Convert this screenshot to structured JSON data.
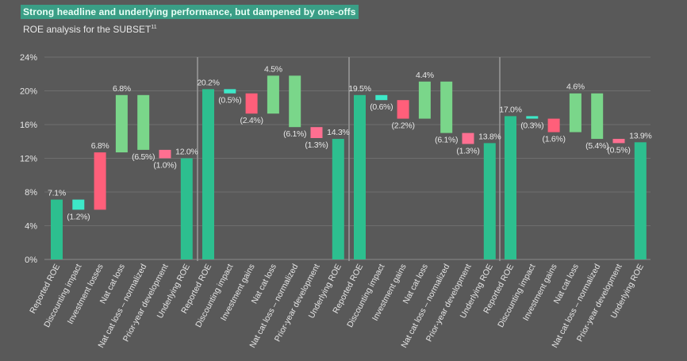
{
  "headline": "Strong headline and underlying performance, but dampened by one-offs",
  "subtitle": "ROE analysis for the SUBSET",
  "subtitle_sup": "11",
  "colors": {
    "background": "#595959",
    "total": "#2dbf8f",
    "discounting": "#3de8c8",
    "negative": "#ff5f7a",
    "positive": "#7ad68a",
    "prior_year": "#ff6f91",
    "text": "#e6e6e6",
    "grid": "#6e6e6e",
    "divider": "#9a9a9a"
  },
  "chart_data": {
    "type": "waterfall",
    "y_axis": {
      "min": 0,
      "max": 24,
      "ticks": [
        0,
        4,
        8,
        12,
        16,
        20,
        24
      ],
      "tick_labels": [
        "0%",
        "4%",
        "8%",
        "12%",
        "16%",
        "20%",
        "24%"
      ]
    },
    "panels": [
      {
        "steps": [
          {
            "label": "Reported ROE",
            "kind": "total",
            "start": 0,
            "end": 7.1,
            "value_label": "7.1%"
          },
          {
            "label": "Discounting impact",
            "kind": "discounting",
            "start": 7.1,
            "end": 5.9,
            "value_label": "(1.2%)"
          },
          {
            "label": "Investment losses",
            "kind": "negative",
            "start": 5.9,
            "end": 12.7,
            "value_label": "6.8%"
          },
          {
            "label": "Nat cat loss",
            "kind": "positive",
            "start": 12.7,
            "end": 19.5,
            "value_label": "6.8%"
          },
          {
            "label": "Nat cat loss – normalized",
            "kind": "positive",
            "start": 19.5,
            "end": 13.0,
            "value_label": "(6.5%)"
          },
          {
            "label": "Prior-year development",
            "kind": "prior_year",
            "start": 13.0,
            "end": 12.0,
            "value_label": "(1.0%)"
          },
          {
            "label": "Underlying ROE",
            "kind": "total",
            "start": 0,
            "end": 12.0,
            "value_label": "12.0%"
          }
        ]
      },
      {
        "steps": [
          {
            "label": "Reported ROE",
            "kind": "total",
            "start": 0,
            "end": 20.2,
            "value_label": "20.2%"
          },
          {
            "label": "Discounting impact",
            "kind": "discounting",
            "start": 20.2,
            "end": 19.7,
            "value_label": "(0.5%)"
          },
          {
            "label": "Investment gains",
            "kind": "negative",
            "start": 19.7,
            "end": 17.3,
            "value_label": "(2.4%)"
          },
          {
            "label": "Nat cat loss",
            "kind": "positive",
            "start": 17.3,
            "end": 21.8,
            "value_label": "4.5%"
          },
          {
            "label": "Nat cat loss – normalized",
            "kind": "positive",
            "start": 21.8,
            "end": 15.7,
            "value_label": "(6.1%)"
          },
          {
            "label": "Prior-year development",
            "kind": "prior_year",
            "start": 15.7,
            "end": 14.4,
            "value_label": "(1.3%)"
          },
          {
            "label": "Underlying ROE",
            "kind": "total",
            "start": 0,
            "end": 14.3,
            "value_label": "14.3%"
          }
        ]
      },
      {
        "steps": [
          {
            "label": "Reported ROE",
            "kind": "total",
            "start": 0,
            "end": 19.5,
            "value_label": "19.5%"
          },
          {
            "label": "Discounting impact",
            "kind": "discounting",
            "start": 19.5,
            "end": 18.9,
            "value_label": "(0.6%)"
          },
          {
            "label": "Investment gains",
            "kind": "negative",
            "start": 18.9,
            "end": 16.7,
            "value_label": "(2.2%)"
          },
          {
            "label": "Nat cat loss",
            "kind": "positive",
            "start": 16.7,
            "end": 21.1,
            "value_label": "4.4%"
          },
          {
            "label": "Nat cat loss – normalized",
            "kind": "positive",
            "start": 21.1,
            "end": 15.0,
            "value_label": "(6.1%)"
          },
          {
            "label": "Prior-year development",
            "kind": "prior_year",
            "start": 15.0,
            "end": 13.7,
            "value_label": "(1.3%)"
          },
          {
            "label": "Underlying ROE",
            "kind": "total",
            "start": 0,
            "end": 13.8,
            "value_label": "13.8%"
          }
        ]
      },
      {
        "steps": [
          {
            "label": "Reported ROE",
            "kind": "total",
            "start": 0,
            "end": 17.0,
            "value_label": "17.0%"
          },
          {
            "label": "Discounting impact",
            "kind": "discounting",
            "start": 17.0,
            "end": 16.7,
            "value_label": "(0.3%)"
          },
          {
            "label": "Investment gains",
            "kind": "negative",
            "start": 16.7,
            "end": 15.1,
            "value_label": "(1.6%)"
          },
          {
            "label": "Nat cat loss",
            "kind": "positive",
            "start": 15.1,
            "end": 19.7,
            "value_label": "4.6%"
          },
          {
            "label": "Nat cat loss – normalized",
            "kind": "positive",
            "start": 19.7,
            "end": 14.3,
            "value_label": "(5.4%)"
          },
          {
            "label": "Prior-year development",
            "kind": "prior_year",
            "start": 14.3,
            "end": 13.8,
            "value_label": "(0.5%)"
          },
          {
            "label": "Underlying ROE",
            "kind": "total",
            "start": 0,
            "end": 13.9,
            "value_label": "13.9%"
          }
        ]
      }
    ]
  }
}
